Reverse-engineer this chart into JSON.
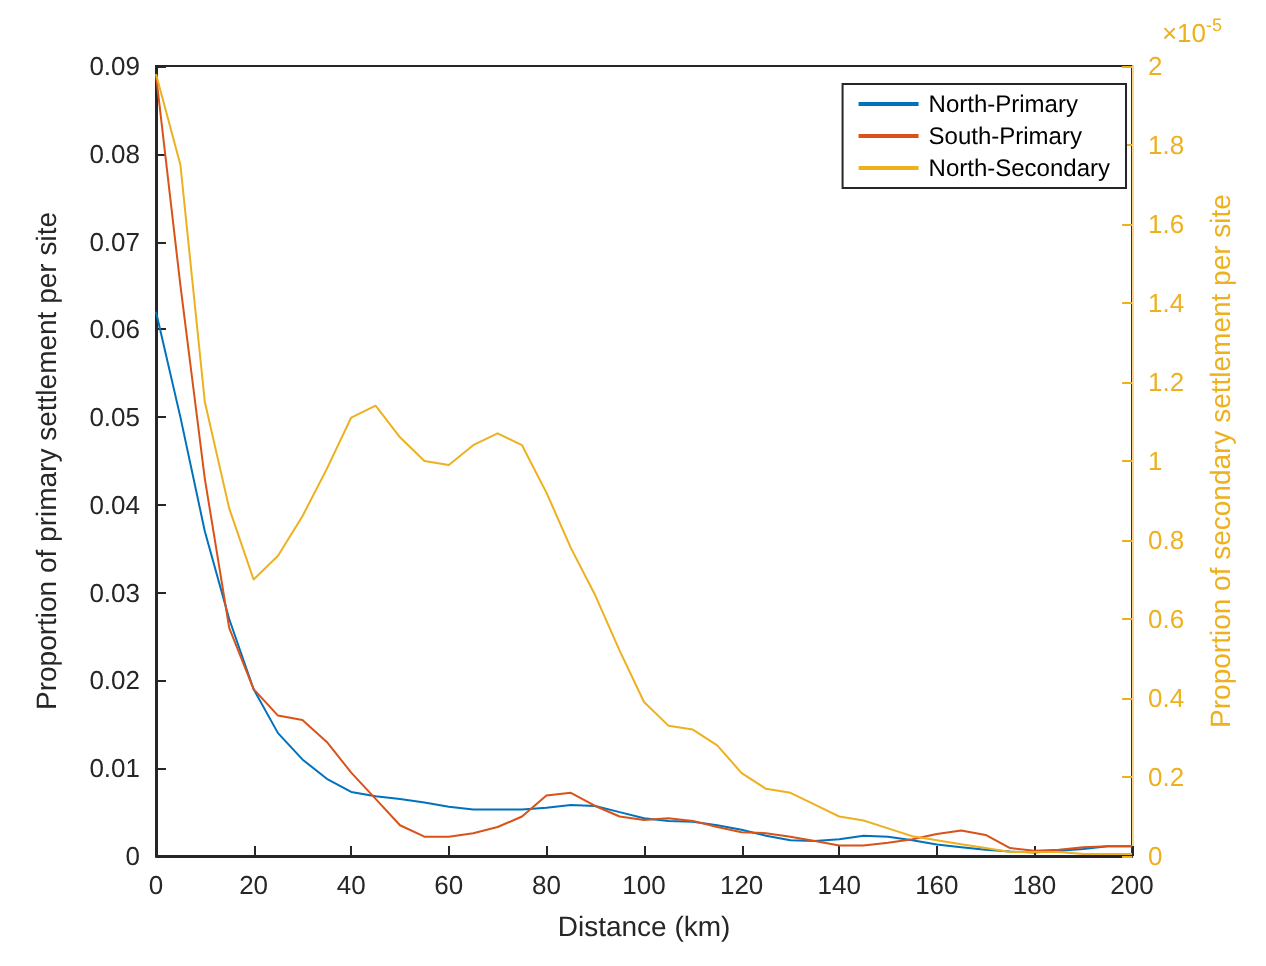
{
  "chart_data": {
    "type": "line",
    "xlabel": "Distance (km)",
    "ylabel": "Proportion of primary settlement per site",
    "y2label": "Proportion of secondary settlement per site",
    "x": [
      0,
      5,
      10,
      15,
      20,
      25,
      30,
      35,
      40,
      45,
      50,
      55,
      60,
      65,
      70,
      75,
      80,
      85,
      90,
      95,
      100,
      105,
      110,
      115,
      120,
      125,
      130,
      135,
      140,
      145,
      150,
      155,
      160,
      165,
      170,
      175,
      180,
      185,
      190,
      195,
      200
    ],
    "series": [
      {
        "name": "North-Primary",
        "color": "#0072bd",
        "values": [
          0.062,
          0.05,
          0.037,
          0.027,
          0.019,
          0.014,
          0.011,
          0.0088,
          0.0073,
          0.0068,
          0.0065,
          0.0061,
          0.0056,
          0.0053,
          0.0053,
          0.0053,
          0.0055,
          0.0058,
          0.0057,
          0.005,
          0.0043,
          0.004,
          0.0039,
          0.0035,
          0.003,
          0.0023,
          0.0018,
          0.0017,
          0.0019,
          0.0023,
          0.0022,
          0.0018,
          0.0013,
          0.001,
          0.0007,
          0.0005,
          0.0004,
          0.0006,
          0.0008,
          0.0011,
          0.0011
        ]
      },
      {
        "name": "South-Primary",
        "color": "#d95319",
        "values": [
          0.089,
          0.065,
          0.043,
          0.026,
          0.019,
          0.016,
          0.0155,
          0.013,
          0.0095,
          0.0065,
          0.0035,
          0.0022,
          0.0022,
          0.0026,
          0.0033,
          0.0045,
          0.0069,
          0.0072,
          0.0057,
          0.0045,
          0.0041,
          0.0043,
          0.004,
          0.0033,
          0.0027,
          0.0026,
          0.0022,
          0.0017,
          0.0012,
          0.0012,
          0.0015,
          0.0019,
          0.0025,
          0.0029,
          0.0024,
          0.0009,
          0.0006,
          0.0007,
          0.001,
          0.0011,
          0.0011
        ]
      },
      {
        "name": "North-Secondary",
        "color": "#edb120",
        "axis": "y2",
        "values": [
          1.98,
          1.75,
          1.15,
          0.88,
          0.7,
          0.76,
          0.86,
          0.98,
          1.11,
          1.14,
          1.06,
          1.0,
          0.99,
          1.04,
          1.07,
          1.04,
          0.92,
          0.78,
          0.66,
          0.52,
          0.39,
          0.33,
          0.32,
          0.28,
          0.21,
          0.17,
          0.16,
          0.13,
          0.1,
          0.09,
          0.07,
          0.05,
          0.04,
          0.03,
          0.02,
          0.01,
          0.01,
          0.01,
          0.005,
          0.005,
          0.005
        ]
      }
    ],
    "xlim": [
      0,
      200
    ],
    "xticks": [
      0,
      20,
      40,
      60,
      80,
      100,
      120,
      140,
      160,
      180,
      200
    ],
    "ylim": [
      0,
      0.09
    ],
    "yticks": [
      0,
      0.01,
      0.02,
      0.03,
      0.04,
      0.05,
      0.06,
      0.07,
      0.08,
      0.09
    ],
    "y2lim": [
      0,
      2
    ],
    "y2ticks": [
      0,
      0.2,
      0.4,
      0.6,
      0.8,
      1,
      1.2,
      1.4,
      1.6,
      1.8,
      2
    ],
    "annotations": [
      "×10$^{-5}$"
    ],
    "legend": "top right",
    "grid": false,
    "marker": "none",
    "line_style": "solid"
  }
}
